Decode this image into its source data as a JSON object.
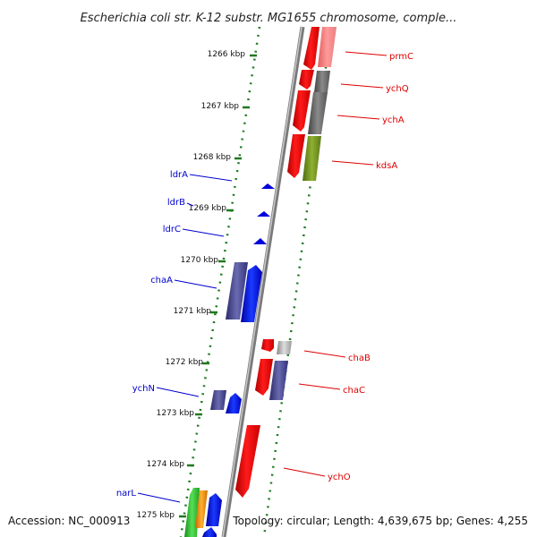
{
  "title": "Escherichia coli str. K-12 substr. MG1655 chromosome, comple...",
  "footer": {
    "accession": "Accession: NC_000913",
    "summary": "Topology: circular; Length: 4,639,675 bp; Genes: 4,255"
  },
  "ticks": [
    "1266 kbp",
    "1267 kbp",
    "1268 kbp",
    "1269 kbp",
    "1270 kbp",
    "1271 kbp",
    "1272 kbp",
    "1273 kbp",
    "1274 kbp",
    "1275 kbp"
  ],
  "colors": {
    "backbone": "#8a8a8a",
    "tick": "#1f7a1f",
    "reverse_label": "#dd0000",
    "forward_label": "#0000cc"
  },
  "labels": {
    "reverse": [
      "prmC",
      "ychQ",
      "ychA",
      "kdsA",
      "chaB",
      "chaC",
      "ychO"
    ],
    "forward": [
      "ldrA",
      "ldrB",
      "ldrC",
      "chaA",
      "ychN",
      "narL"
    ]
  }
}
